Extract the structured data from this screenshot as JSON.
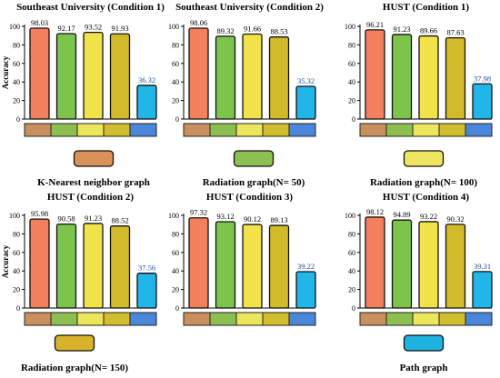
{
  "chart_data": [
    {
      "type": "bar",
      "title": "Southeast University (Condition 1)",
      "ylabel": "Accuracy",
      "ylim": [
        0,
        100
      ],
      "yticks": [
        0,
        20,
        40,
        60,
        80,
        100
      ],
      "values": [
        98.03,
        92.17,
        93.52,
        91.93,
        36.32
      ]
    },
    {
      "type": "bar",
      "title": "Southeast University (Condition 2)",
      "ylabel": "",
      "ylim": [
        0,
        100
      ],
      "yticks": [
        0,
        20,
        40,
        60,
        80,
        100
      ],
      "values": [
        98.06,
        89.32,
        91.66,
        88.53,
        35.32
      ]
    },
    {
      "type": "bar",
      "title": "HUST (Condition 1)",
      "ylabel": "",
      "ylim": [
        0,
        100
      ],
      "yticks": [
        0,
        20,
        40,
        60,
        80,
        100
      ],
      "values": [
        96.21,
        91.23,
        89.66,
        87.63,
        37.98
      ]
    },
    {
      "type": "bar",
      "title": "HUST (Condition 2)",
      "ylabel": "Accuracy",
      "ylim": [
        0,
        100
      ],
      "yticks": [
        0,
        20,
        40,
        60,
        80,
        100
      ],
      "values": [
        95.98,
        90.58,
        91.23,
        88.52,
        37.56
      ]
    },
    {
      "type": "bar",
      "title": "HUST (Condition 3)",
      "ylabel": "",
      "ylim": [
        0,
        100
      ],
      "yticks": [
        0,
        20,
        40,
        60,
        80,
        100
      ],
      "values": [
        97.32,
        93.12,
        90.12,
        89.13,
        39.22
      ]
    },
    {
      "type": "bar",
      "title": "HUST (Condition 4)",
      "ylabel": "",
      "ylim": [
        0,
        100
      ],
      "yticks": [
        0,
        20,
        40,
        60,
        80,
        100
      ],
      "values": [
        98.12,
        94.89,
        93.22,
        90.32,
        39.31
      ]
    }
  ],
  "series_colors": [
    "#f2805a",
    "#7cc44b",
    "#f2e24a",
    "#d2ba2a",
    "#22b6e8"
  ],
  "strip_colors": [
    "#c9905e",
    "#8dbf50",
    "#ece65a",
    "#d1be2e",
    "#4a86d9"
  ],
  "label_colors": [
    "#000000",
    "#000000",
    "#000000",
    "#000000",
    "#1f4ea8"
  ],
  "legend": [
    {
      "label": "K-Nearest neighbor graph",
      "swatch": "#d9925a"
    },
    {
      "label": "Radiation graph(N= 50)",
      "swatch": "#8cc050"
    },
    {
      "label": "Radiation graph(N= 100)",
      "swatch": "#eee660"
    },
    {
      "label": "Radiation graph(N= 150)",
      "swatch": "#d8b22a"
    },
    {
      "label": "Path graph",
      "swatch": "#1eb2df"
    }
  ]
}
